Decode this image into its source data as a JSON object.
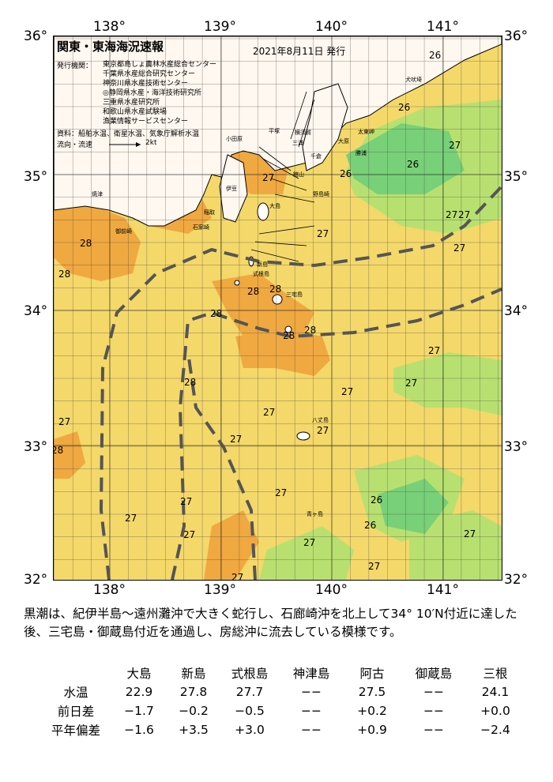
{
  "map": {
    "title": "関東・東海海況速報",
    "date": "2021年8月11日 発行",
    "agency_label": "発行機関：",
    "agencies": [
      "東京都島しょ農林水産総合センター",
      "千葉県水産総合研究センター",
      "神奈川県水産技術センター",
      "◎静岡県水産・海洋技術研究所",
      "三重県水産研究所",
      "和歌山県水産試験場",
      "漁業情報サービスセンター"
    ],
    "source": "資料：船舶水温、衛星水温、気象庁解析水温",
    "flow_label": "流向・流速",
    "flow_scale": "2kt",
    "lon_labels": [
      "138°",
      "139°",
      "140°",
      "141°"
    ],
    "lat_labels": [
      "36°",
      "35°",
      "34°",
      "33°",
      "32°"
    ],
    "temperature_labels": [
      {
        "value": "26"
      },
      {
        "value": "26"
      },
      {
        "value": "27"
      },
      {
        "value": "26"
      },
      {
        "value": "26"
      },
      {
        "value": "27"
      },
      {
        "value": "27"
      },
      {
        "value": "27"
      },
      {
        "value": "27"
      },
      {
        "value": "28"
      },
      {
        "value": "28"
      },
      {
        "value": "27"
      },
      {
        "value": "28"
      },
      {
        "value": "28"
      },
      {
        "value": "28"
      },
      {
        "value": "28"
      },
      {
        "value": "28"
      },
      {
        "value": "27"
      },
      {
        "value": "27"
      },
      {
        "value": "27"
      },
      {
        "value": "28"
      },
      {
        "value": "27"
      },
      {
        "value": "27"
      },
      {
        "value": "27"
      },
      {
        "value": "27"
      },
      {
        "value": "28"
      },
      {
        "value": "27"
      },
      {
        "value": "27"
      },
      {
        "value": "26"
      },
      {
        "value": "27"
      },
      {
        "value": "26"
      },
      {
        "value": "27"
      },
      {
        "value": "27"
      },
      {
        "value": "27"
      },
      {
        "value": "27"
      },
      {
        "value": "27"
      }
    ],
    "place_names": [
      "焼津",
      "御前崎",
      "伊豆",
      "大島",
      "新島",
      "式根島",
      "三宅島",
      "八丈島",
      "犬吠埼",
      "勝浦",
      "千倉",
      "館山",
      "野島崎",
      "稲取",
      "石廊崎",
      "小田原",
      "平塚",
      "横須賀",
      "三浦",
      "大原",
      "太東岬",
      "青ヶ島"
    ]
  },
  "description": "黒潮は、紀伊半島～遠州灘沖で大きく蛇行し、石廊崎沖を北上して34° 10′N付近に達した後、三宅島・御蔵島付近を通過し、房総沖に流去している模様です。",
  "table": {
    "columns": [
      "大島",
      "新島",
      "式根島",
      "神津島",
      "阿古",
      "御蔵島",
      "三根"
    ],
    "rows": [
      {
        "label": "水温",
        "values": [
          "22.9",
          "27.8",
          "27.7",
          "−−",
          "27.5",
          "−−",
          "24.1"
        ]
      },
      {
        "label": "前日差",
        "values": [
          "−1.7",
          "−0.2",
          "−0.5",
          "−−",
          "+0.2",
          "−−",
          "+0.0"
        ]
      },
      {
        "label": "平年偏差",
        "values": [
          "−1.6",
          "+3.5",
          "+3.0",
          "−−",
          "+0.9",
          "−−",
          "−2.4"
        ]
      }
    ]
  },
  "colors": {
    "sea_27": "#f4d86a",
    "sea_28": "#f0a840",
    "sea_26": "#b8e070",
    "sea_25": "#78d078",
    "land": "#fff8f0",
    "kuroshio": "#555555"
  }
}
